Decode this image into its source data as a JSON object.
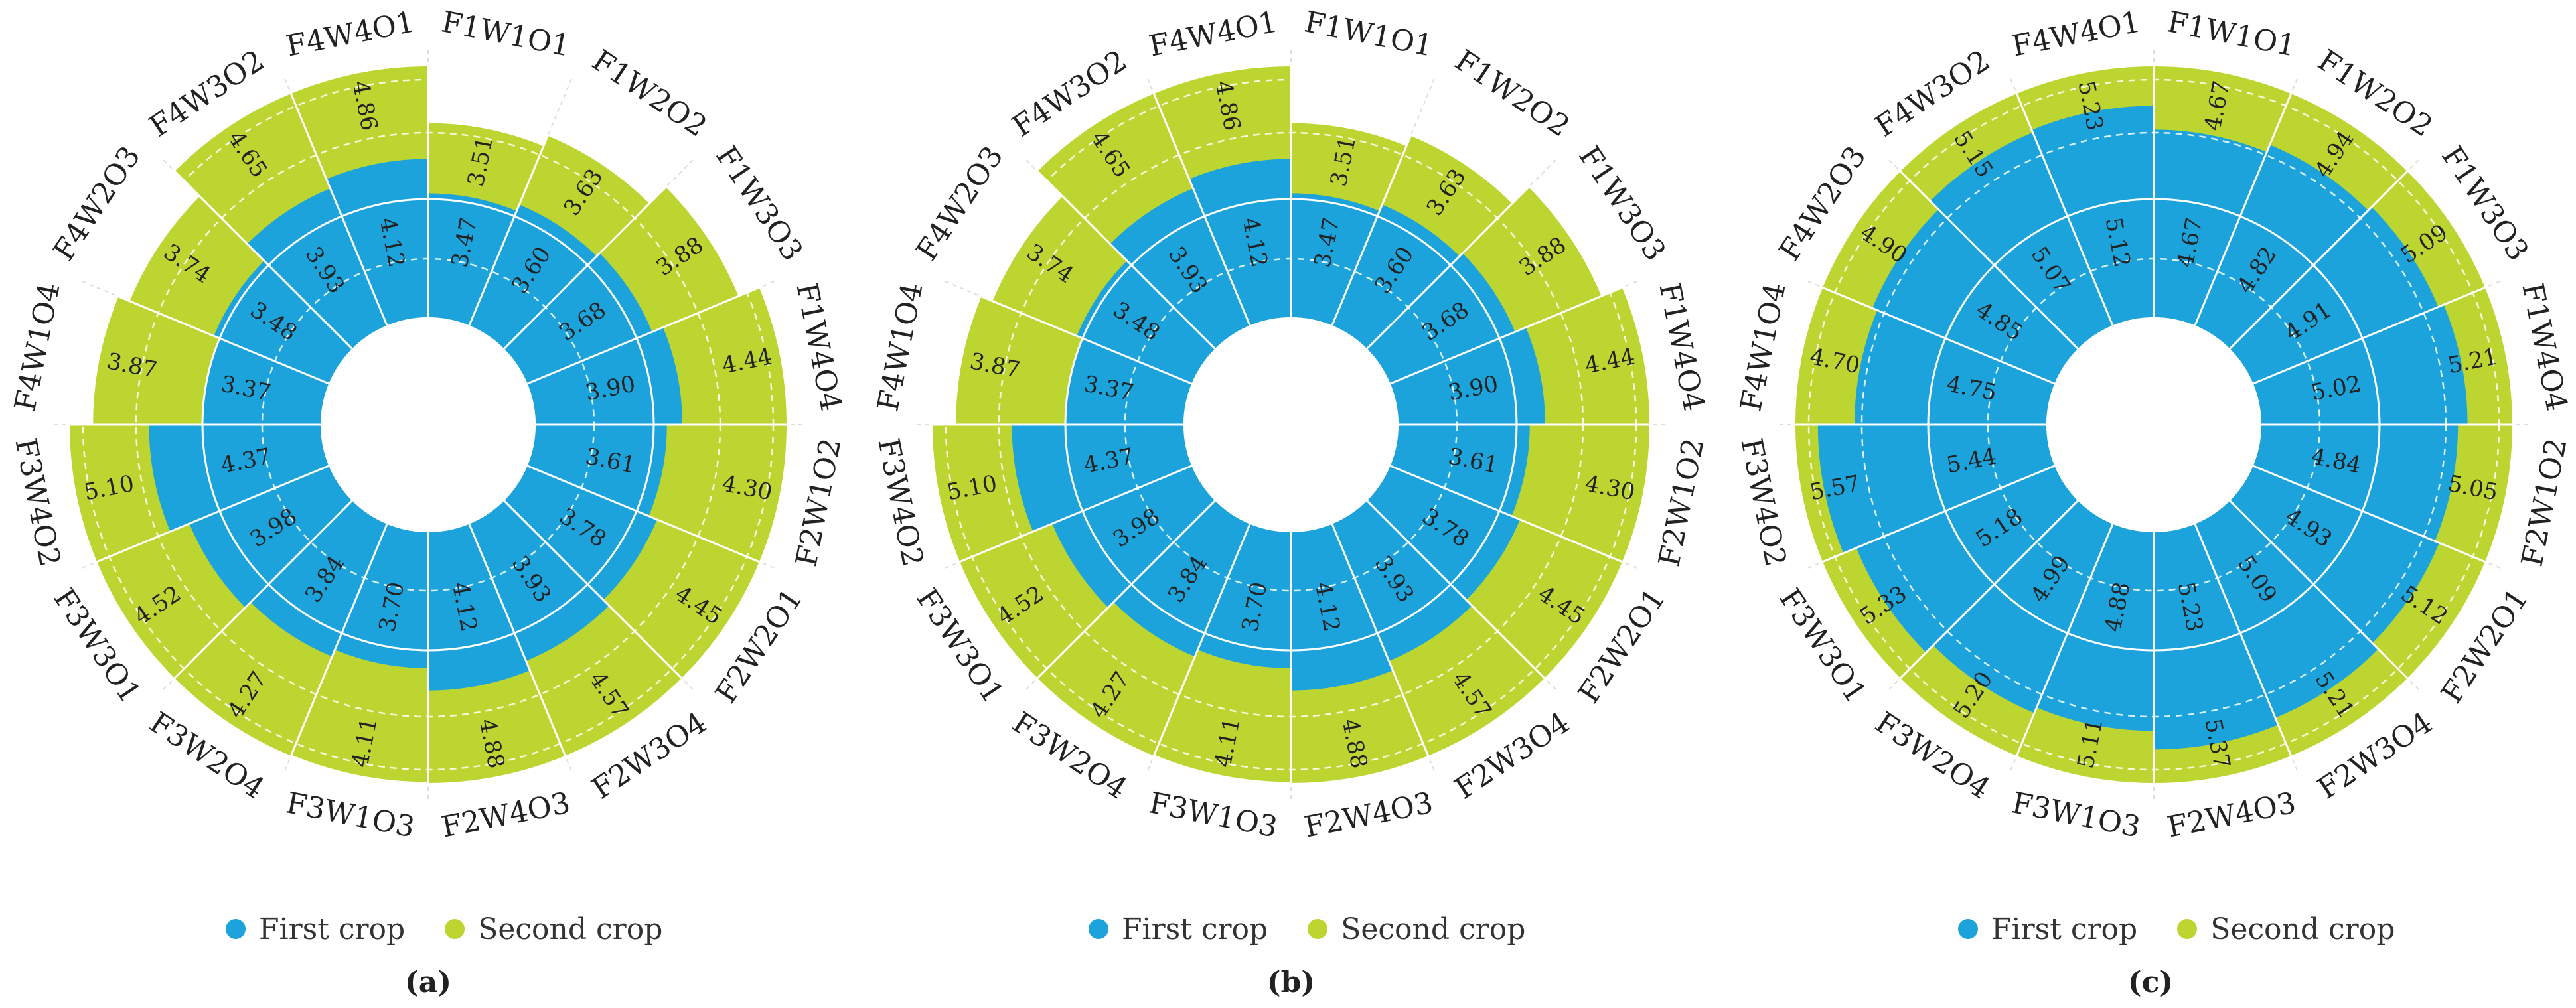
{
  "colors": {
    "first_crop": "#1ca3dc",
    "second_crop": "#bdd531",
    "divider": "#ffffff"
  },
  "legend": {
    "first": "First crop",
    "second": "Second crop"
  },
  "chart_data": [
    {
      "type": "polar-bar",
      "panel_label": "(a)",
      "categories": [
        "F1W1O1",
        "F1W2O2",
        "F1W3O3",
        "F1W4O4",
        "F2W1O2",
        "F2W2O1",
        "F2W3O4",
        "F2W4O3",
        "F3W1O3",
        "F3W2O4",
        "F3W3O1",
        "F3W4O2",
        "F4W1O4",
        "F4W2O3",
        "F4W3O2",
        "F4W4O1"
      ],
      "series": [
        {
          "name": "First crop",
          "values": [
            3.47,
            3.6,
            3.68,
            3.9,
            3.61,
            3.78,
            3.93,
            4.12,
            3.7,
            3.84,
            3.98,
            4.37,
            3.37,
            3.48,
            3.93,
            4.12
          ]
        },
        {
          "name": "Second crop",
          "values": [
            3.51,
            3.63,
            3.88,
            4.44,
            4.3,
            4.45,
            4.57,
            4.88,
            4.11,
            4.27,
            4.52,
            5.1,
            3.87,
            3.74,
            4.65,
            4.86
          ]
        }
      ]
    },
    {
      "type": "polar-bar",
      "panel_label": "(b)",
      "categories": [
        "F1W1O1",
        "F1W2O2",
        "F1W3O3",
        "F1W4O4",
        "F2W1O2",
        "F2W2O1",
        "F2W3O4",
        "F2W4O3",
        "F3W1O3",
        "F3W2O4",
        "F3W3O1",
        "F3W4O2",
        "F4W1O4",
        "F4W2O3",
        "F4W3O2",
        "F4W4O1"
      ],
      "series": [
        {
          "name": "First crop",
          "values": [
            3.47,
            3.6,
            3.68,
            3.9,
            3.61,
            3.78,
            3.93,
            4.12,
            3.7,
            3.84,
            3.98,
            4.37,
            3.37,
            3.48,
            3.93,
            4.12
          ]
        },
        {
          "name": "Second crop",
          "values": [
            3.51,
            3.63,
            3.88,
            4.44,
            4.3,
            4.45,
            4.57,
            4.88,
            4.11,
            4.27,
            4.52,
            5.1,
            3.87,
            3.74,
            4.65,
            4.86
          ]
        }
      ]
    },
    {
      "type": "polar-bar",
      "panel_label": "(c)",
      "categories": [
        "F1W1O1",
        "F1W2O2",
        "F1W3O3",
        "F1W4O4",
        "F2W1O2",
        "F2W2O1",
        "F2W3O4",
        "F2W4O3",
        "F3W1O3",
        "F3W2O4",
        "F3W3O1",
        "F3W4O2",
        "F4W1O4",
        "F4W2O3",
        "F4W3O2",
        "F4W4O1"
      ],
      "series": [
        {
          "name": "First crop",
          "values": [
            4.67,
            4.82,
            4.91,
            5.02,
            4.84,
            4.93,
            5.09,
            5.23,
            4.88,
            4.99,
            5.18,
            5.44,
            4.75,
            4.85,
            5.07,
            5.12
          ]
        },
        {
          "name": "Second crop",
          "values": [
            4.67,
            4.94,
            5.09,
            5.21,
            5.05,
            5.12,
            5.21,
            5.37,
            5.11,
            5.2,
            5.33,
            5.57,
            4.7,
            4.9,
            5.15,
            5.23
          ]
        }
      ]
    }
  ]
}
